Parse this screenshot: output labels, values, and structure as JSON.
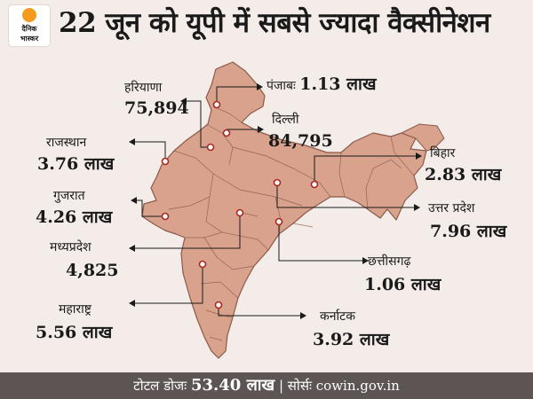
{
  "header": {
    "logo_line1": "दैनिक",
    "logo_line2": "भास्कर",
    "title": "22 जून को यूपी में सबसे ज्यादा वैक्सीनेशन"
  },
  "colors": {
    "land": "#d9a28d",
    "border": "#8a5a4a",
    "accent_dot": "#ffffff",
    "footer_bg": "#5d5553"
  },
  "states": [
    {
      "id": "punjab",
      "name": "पंजाबः",
      "value": "1.13 लाख"
    },
    {
      "id": "haryana",
      "name": "हरियाणा",
      "value": "75,894"
    },
    {
      "id": "delhi",
      "name": "दिल्ली",
      "value": "84,795"
    },
    {
      "id": "rajasthan",
      "name": "राजस्थान",
      "value": "3.76 लाख"
    },
    {
      "id": "bihar",
      "name": "बिहार",
      "value": "2.83 लाख"
    },
    {
      "id": "gujarat",
      "name": "गुजरात",
      "value": "4.26 लाख"
    },
    {
      "id": "up",
      "name": "उत्तर प्रदेश",
      "value": "7.96 लाख"
    },
    {
      "id": "mp",
      "name": "मध्यप्रदेश",
      "value": "4,825"
    },
    {
      "id": "chhattisgarh",
      "name": "छत्तीसगढ़",
      "value": "1.06 लाख"
    },
    {
      "id": "maharashtra",
      "name": "महाराष्ट्र",
      "value": "5.56 लाख"
    },
    {
      "id": "karnataka",
      "name": "कर्नाटक",
      "value": "3.92 लाख"
    }
  ],
  "footer": {
    "total_label": "टोटल डोजः",
    "total_value": "53.40 लाख",
    "separator": "|",
    "source_label": "सोर्सः",
    "source_value": "cowin.gov.in"
  }
}
